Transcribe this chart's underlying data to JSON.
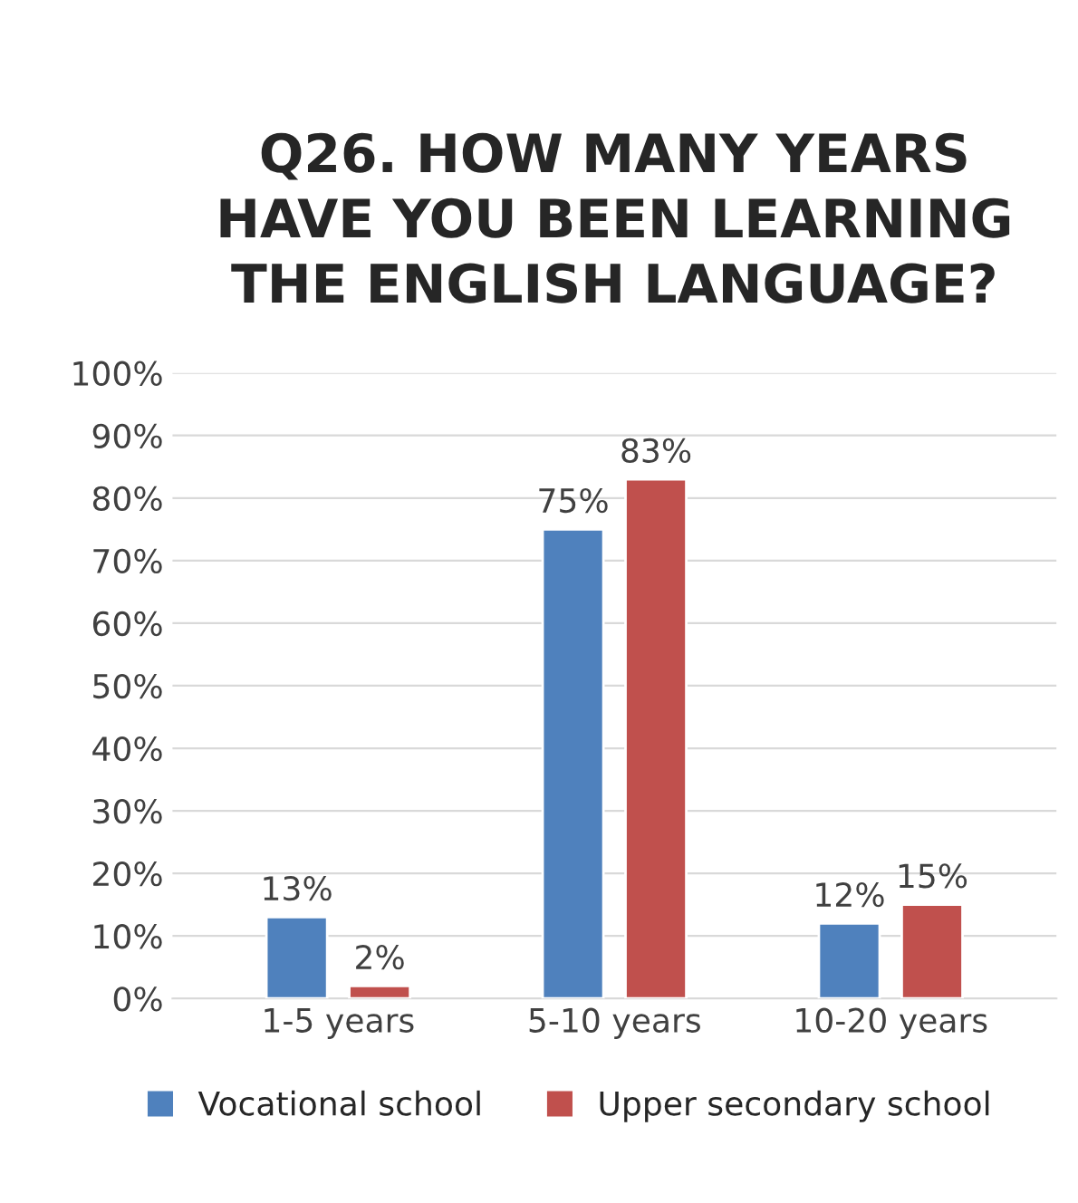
{
  "chart_data": {
    "type": "bar",
    "title": "Q26. HOW MANY YEARS\nHAVE YOU BEEN LEARNING\nTHE ENGLISH LANGUAGE?",
    "categories": [
      "1-5 years",
      "5-10 years",
      "10-20 years"
    ],
    "series": [
      {
        "name": "Vocational school",
        "color": "#4f81bd",
        "values": [
          13,
          75,
          12
        ],
        "value_labels": [
          "13%",
          "75%",
          "12%"
        ]
      },
      {
        "name": "Upper secondary school",
        "color": "#c0504d",
        "values": [
          2,
          83,
          15
        ],
        "value_labels": [
          "2%",
          "83%",
          "15%"
        ]
      }
    ],
    "ylim": [
      0,
      100
    ],
    "yticks": [
      {
        "value": 0,
        "label": "0%"
      },
      {
        "value": 10,
        "label": "10%"
      },
      {
        "value": 20,
        "label": "20%"
      },
      {
        "value": 30,
        "label": "30%"
      },
      {
        "value": 40,
        "label": "40%"
      },
      {
        "value": 50,
        "label": "50%"
      },
      {
        "value": 60,
        "label": "60%"
      },
      {
        "value": 70,
        "label": "70%"
      },
      {
        "value": 80,
        "label": "80%"
      },
      {
        "value": 90,
        "label": "90%"
      },
      {
        "value": 100,
        "label": "100%"
      }
    ],
    "grid": "y",
    "legend": "bottom"
  }
}
